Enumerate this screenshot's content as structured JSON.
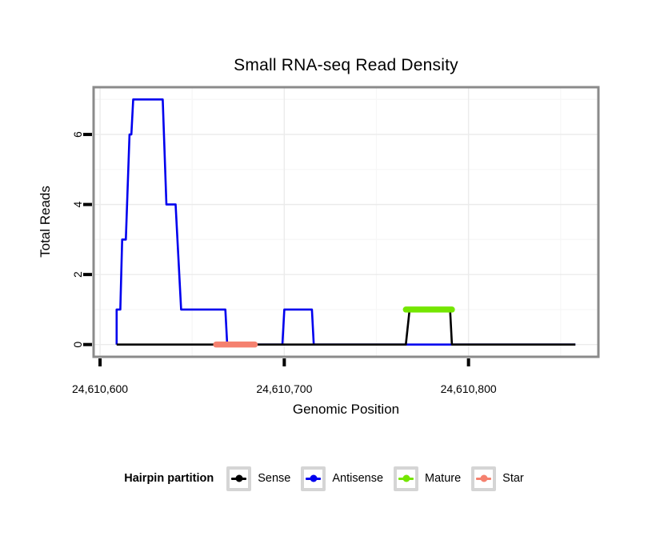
{
  "chart_data": {
    "type": "line",
    "title": "Small RNA-seq Read Density",
    "xlabel": "Genomic Position",
    "ylabel": "Total Reads",
    "xlim": [
      24610596.5,
      24610870.5
    ],
    "ylim": [
      -0.35,
      7.35
    ],
    "grid": true,
    "x_ticks": [
      {
        "value": 24610600,
        "label": "24,610,600"
      },
      {
        "value": 24610700,
        "label": "24,610,700"
      },
      {
        "value": 24610800,
        "label": "24,610,800"
      }
    ],
    "x_minor_gridlines": [
      24610650,
      24610750,
      24610850
    ],
    "y_ticks": [
      {
        "value": 0,
        "label": "0"
      },
      {
        "value": 2,
        "label": "2"
      },
      {
        "value": 4,
        "label": "4"
      },
      {
        "value": 6,
        "label": "6"
      }
    ],
    "y_minor_gridlines": [
      1,
      3,
      5,
      7
    ],
    "series": [
      {
        "name": "Antisense",
        "type": "step-line",
        "color": "#0000ee",
        "points": [
          [
            24610609,
            0
          ],
          [
            24610609,
            1
          ],
          [
            24610611,
            1
          ],
          [
            24610612,
            3
          ],
          [
            24610614,
            3
          ],
          [
            24610616,
            6
          ],
          [
            24610617,
            6
          ],
          [
            24610618,
            7
          ],
          [
            24610634,
            7
          ],
          [
            24610636,
            4
          ],
          [
            24610641,
            4
          ],
          [
            24610644,
            1
          ],
          [
            24610668,
            1
          ],
          [
            24610669,
            0
          ],
          [
            24610699,
            0
          ],
          [
            24610700,
            1
          ],
          [
            24610715,
            1
          ],
          [
            24610716,
            0
          ],
          [
            24610858,
            0
          ]
        ]
      },
      {
        "name": "Sense",
        "type": "step-line",
        "color": "#000000",
        "points": [
          [
            24610609,
            0
          ],
          [
            24610766,
            0
          ],
          [
            24610768,
            1
          ],
          [
            24610790,
            1
          ],
          [
            24610791,
            0
          ],
          [
            24610858,
            0
          ]
        ]
      },
      {
        "name": "Mature",
        "type": "segment",
        "color": "#74e600",
        "y": 1,
        "x0": 24610766,
        "x1": 24610791
      },
      {
        "name": "Star",
        "type": "segment",
        "color": "#f5816f",
        "y": 0,
        "x0": 24610663,
        "x1": 24610684
      }
    ],
    "legend": {
      "title": "Hairpin partition",
      "entries": [
        {
          "label": "Sense",
          "color": "#000000"
        },
        {
          "label": "Antisense",
          "color": "#0000ee"
        },
        {
          "label": "Mature",
          "color": "#74e600"
        },
        {
          "label": "Star",
          "color": "#f5816f"
        }
      ]
    },
    "style_colors": {
      "panel_border": "#8b8b8b",
      "major_grid": "#ebebeb",
      "minor_grid": "#f7f7f7",
      "tick": "#000000",
      "legend_key_border": "#d5d5d5"
    }
  }
}
